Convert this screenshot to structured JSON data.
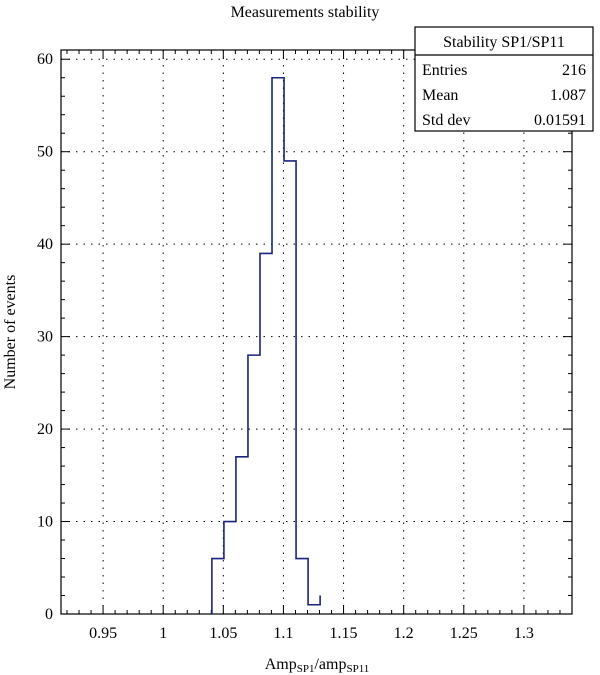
{
  "chart_data": {
    "type": "bar",
    "title": "Measurements stability",
    "xlabel": {
      "main": "Amp",
      "sub1": "SP1",
      "mid": "/amp",
      "sub2": "SP11"
    },
    "ylabel": "Number of events",
    "xlim": [
      0.915,
      1.34
    ],
    "ylim": [
      0,
      61
    ],
    "xticks": [
      0.95,
      1,
      1.05,
      1.1,
      1.15,
      1.2,
      1.25,
      1.3
    ],
    "xtick_labels": [
      "0.95",
      "1",
      "1.05",
      "1.1",
      "1.15",
      "1.2",
      "1.25",
      "1.3"
    ],
    "yticks": [
      0,
      10,
      20,
      30,
      40,
      50,
      60
    ],
    "ytick_labels": [
      "0",
      "10",
      "20",
      "30",
      "40",
      "50",
      "60"
    ],
    "grid": true,
    "line_color": "#1a237e",
    "bin_edges": [
      1.0405,
      1.0505,
      1.0605,
      1.0705,
      1.0805,
      1.0905,
      1.1005,
      1.1105,
      1.1205,
      1.1305
    ],
    "counts": [
      6,
      10,
      17,
      28,
      39,
      58,
      49,
      6,
      1,
      2
    ],
    "stats_box": {
      "title": "Stability SP1/SP11",
      "rows": [
        {
          "label": "Entries",
          "value": "216"
        },
        {
          "label": "Mean",
          "value": "1.087"
        },
        {
          "label": "Std dev",
          "value": "0.01591"
        }
      ],
      "position": "top-right"
    }
  }
}
